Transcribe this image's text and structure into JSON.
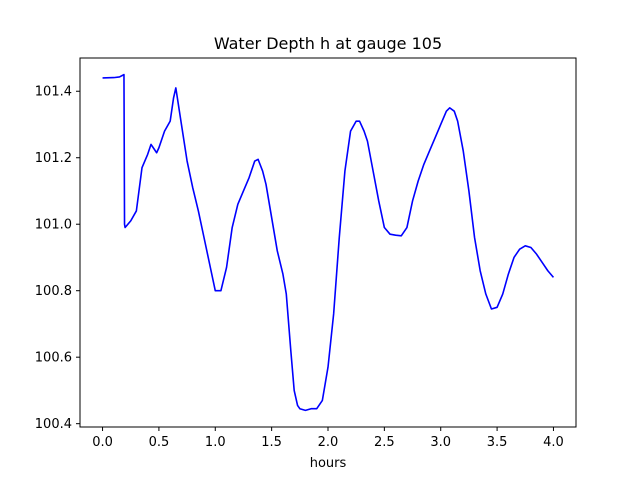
{
  "chart_data": {
    "type": "line",
    "title": "Water Depth h at gauge 105",
    "xlabel": "hours",
    "ylabel": "",
    "xlim": [
      -0.2,
      4.2
    ],
    "ylim": [
      100.39,
      101.5
    ],
    "xticks": [
      0.0,
      0.5,
      1.0,
      1.5,
      2.0,
      2.5,
      3.0,
      3.5,
      4.0
    ],
    "xtick_labels": [
      "0.0",
      "0.5",
      "1.0",
      "1.5",
      "2.0",
      "2.5",
      "3.0",
      "3.5",
      "4.0"
    ],
    "yticks": [
      100.4,
      100.6,
      100.8,
      101.0,
      101.2,
      101.4
    ],
    "ytick_labels": [
      "100.4",
      "100.6",
      "100.8",
      "101.0",
      "101.2",
      "101.4"
    ],
    "grid": false,
    "series": [
      {
        "color": "#0000ff",
        "x": [
          0.0,
          0.1,
          0.15,
          0.19,
          0.195,
          0.2,
          0.25,
          0.3,
          0.35,
          0.4,
          0.43,
          0.45,
          0.48,
          0.5,
          0.55,
          0.6,
          0.63,
          0.65,
          0.7,
          0.75,
          0.8,
          0.85,
          0.9,
          0.95,
          1.0,
          1.05,
          1.1,
          1.15,
          1.2,
          1.25,
          1.3,
          1.35,
          1.38,
          1.42,
          1.45,
          1.5,
          1.55,
          1.6,
          1.63,
          1.67,
          1.7,
          1.73,
          1.75,
          1.8,
          1.85,
          1.9,
          1.95,
          2.0,
          2.05,
          2.1,
          2.15,
          2.2,
          2.25,
          2.28,
          2.32,
          2.35,
          2.4,
          2.45,
          2.5,
          2.55,
          2.6,
          2.65,
          2.7,
          2.75,
          2.8,
          2.85,
          2.9,
          2.95,
          3.0,
          3.05,
          3.08,
          3.12,
          3.15,
          3.2,
          3.25,
          3.3,
          3.35,
          3.4,
          3.45,
          3.5,
          3.55,
          3.6,
          3.65,
          3.7,
          3.75,
          3.8,
          3.85,
          3.9,
          3.95,
          4.0
        ],
        "y": [
          101.44,
          101.441,
          101.443,
          101.45,
          101.0,
          100.99,
          101.01,
          101.04,
          101.17,
          101.21,
          101.24,
          101.23,
          101.215,
          101.23,
          101.28,
          101.31,
          101.38,
          101.41,
          101.3,
          101.19,
          101.11,
          101.04,
          100.96,
          100.88,
          100.8,
          100.8,
          100.87,
          100.99,
          101.06,
          101.1,
          101.14,
          101.19,
          101.195,
          101.16,
          101.12,
          101.02,
          100.92,
          100.85,
          100.79,
          100.62,
          100.5,
          100.455,
          100.445,
          100.44,
          100.445,
          100.445,
          100.47,
          100.57,
          100.73,
          100.96,
          101.16,
          101.28,
          101.31,
          101.31,
          101.28,
          101.25,
          101.16,
          101.07,
          100.99,
          100.97,
          100.967,
          100.965,
          100.99,
          101.07,
          101.13,
          101.18,
          101.22,
          101.26,
          101.3,
          101.34,
          101.35,
          101.34,
          101.31,
          101.22,
          101.1,
          100.96,
          100.86,
          100.79,
          100.745,
          100.75,
          100.79,
          100.85,
          100.9,
          100.925,
          100.935,
          100.93,
          100.91,
          100.885,
          100.86,
          100.84
        ]
      }
    ]
  }
}
